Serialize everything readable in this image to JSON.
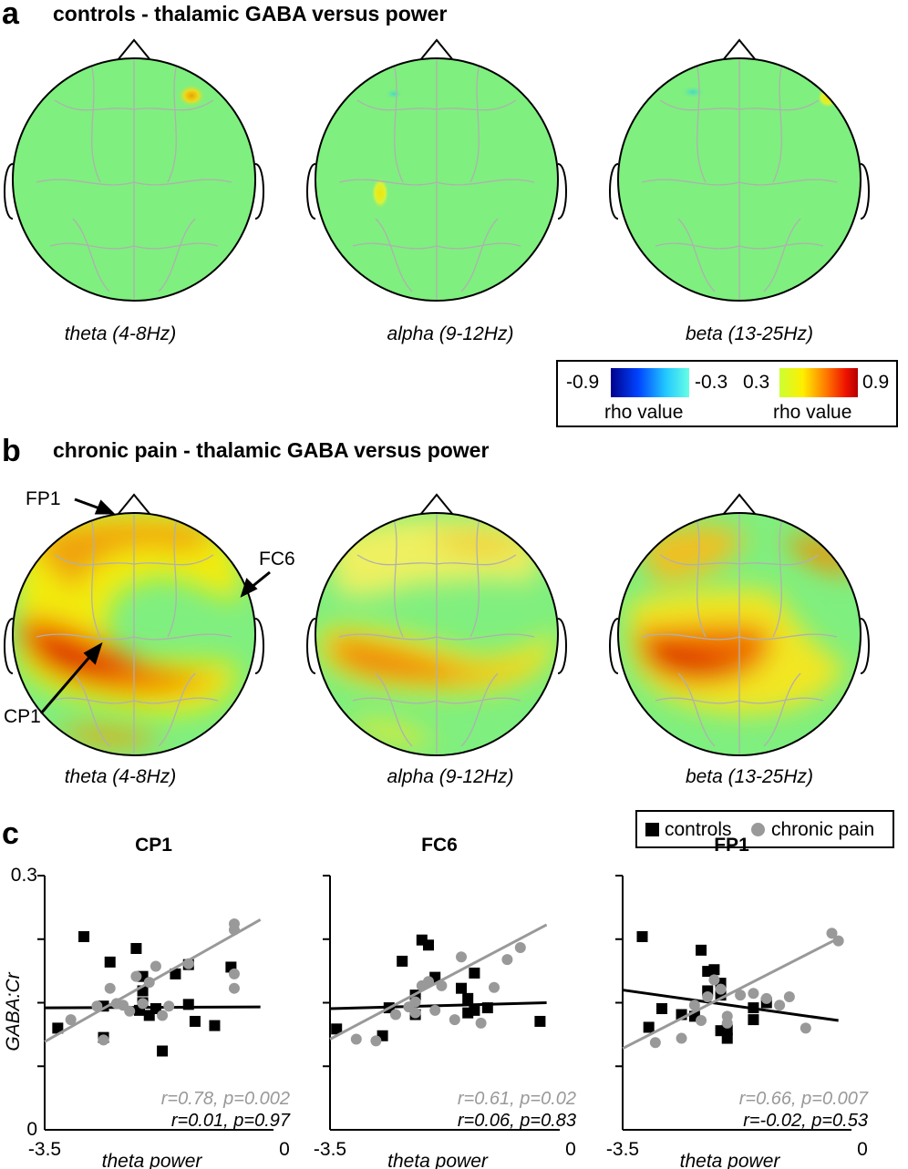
{
  "panel_a": {
    "letter": "a",
    "title": "controls - thalamic GABA versus power",
    "bands": [
      "theta (4-8Hz)",
      "alpha (9-12Hz)",
      "beta (13-25Hz)"
    ]
  },
  "colorbar": {
    "neg_min": "-0.9",
    "neg_max": "-0.3",
    "pos_min": "0.3",
    "pos_max": "0.9",
    "neg_label": "rho value",
    "pos_label": "rho value"
  },
  "panel_b": {
    "letter": "b",
    "title": "chronic pain - thalamic GABA versus power",
    "bands": [
      "theta (4-8Hz)",
      "alpha (9-12Hz)",
      "beta (13-25Hz)"
    ],
    "annotations": [
      "FP1",
      "FC6",
      "CP1"
    ]
  },
  "panel_c": {
    "letter": "c",
    "legend": {
      "controls": "controls",
      "chronic_pain": "chronic pain"
    }
  },
  "colors": {
    "controls": "#000000",
    "chronic_pain": "#999999",
    "map_background": "#7fef7f",
    "neg_low": "#00008c",
    "neg_high": "#66ffe5",
    "pos_low": "#ccff33",
    "pos_high": "#b30000"
  },
  "chart_data": [
    {
      "type": "scatter",
      "title": "CP1",
      "xlabel": "theta power",
      "ylabel": "GABA:Cr",
      "xlim": [
        -3.5,
        0
      ],
      "ylim": [
        0,
        0.3
      ],
      "x_ticks": [
        "-3.5",
        "0"
      ],
      "y_ticks": [
        "0",
        "0.3"
      ],
      "series": [
        {
          "name": "controls",
          "marker": "square",
          "points": [
            [
              -3.3,
              0.12
            ],
            [
              -2.9,
              0.228
            ],
            [
              -2.6,
              0.146
            ],
            [
              -2.6,
              0.109
            ],
            [
              -2.5,
              0.198
            ],
            [
              -2.1,
              0.214
            ],
            [
              -2.05,
              0.141
            ],
            [
              -2.0,
              0.164
            ],
            [
              -2.0,
              0.15
            ],
            [
              -2.0,
              0.181
            ],
            [
              -1.9,
              0.135
            ],
            [
              -1.8,
              0.143
            ],
            [
              -1.7,
              0.093
            ],
            [
              -1.5,
              0.184
            ],
            [
              -1.3,
              0.195
            ],
            [
              -1.3,
              0.148
            ],
            [
              -1.2,
              0.128
            ],
            [
              -0.9,
              0.123
            ],
            [
              -0.65,
              0.192
            ]
          ],
          "trend": [
            [
              -3.5,
              0.144
            ],
            [
              -0.2,
              0.145
            ]
          ],
          "annotation": "r=0.01, p=0.97"
        },
        {
          "name": "chronic pain",
          "marker": "circle",
          "points": [
            [
              -3.1,
              0.13
            ],
            [
              -2.7,
              0.146
            ],
            [
              -2.6,
              0.106
            ],
            [
              -2.5,
              0.167
            ],
            [
              -2.4,
              0.149
            ],
            [
              -2.3,
              0.147
            ],
            [
              -2.2,
              0.14
            ],
            [
              -2.1,
              0.181
            ],
            [
              -2.0,
              0.149
            ],
            [
              -1.9,
              0.174
            ],
            [
              -1.8,
              0.193
            ],
            [
              -1.7,
              0.135
            ],
            [
              -1.6,
              0.146
            ],
            [
              -1.3,
              0.196
            ],
            [
              -0.6,
              0.236
            ],
            [
              -0.6,
              0.167
            ],
            [
              -0.6,
              0.184
            ],
            [
              -0.6,
              0.243
            ]
          ],
          "trend": [
            [
              -3.5,
              0.104
            ],
            [
              -0.2,
              0.248
            ]
          ],
          "annotation": "r=0.78, p=0.002"
        }
      ]
    },
    {
      "type": "scatter",
      "title": "FC6",
      "xlabel": "theta power",
      "ylabel": "",
      "xlim": [
        -3.5,
        0
      ],
      "ylim": [
        0,
        0.3
      ],
      "x_ticks": [
        "-3.5",
        "0"
      ],
      "y_ticks": [],
      "series": [
        {
          "name": "controls",
          "marker": "square",
          "points": [
            [
              -3.4,
              0.119
            ],
            [
              -2.7,
              0.111
            ],
            [
              -2.6,
              0.144
            ],
            [
              -2.4,
              0.199
            ],
            [
              -2.2,
              0.136
            ],
            [
              -2.2,
              0.159
            ],
            [
              -2.1,
              0.224
            ],
            [
              -2.0,
              0.218
            ],
            [
              -1.9,
              0.18
            ],
            [
              -1.5,
              0.167
            ],
            [
              -1.4,
              0.138
            ],
            [
              -1.4,
              0.155
            ],
            [
              -1.3,
              0.185
            ],
            [
              -1.3,
              0.141
            ],
            [
              -1.1,
              0.144
            ],
            [
              -0.3,
              0.128
            ]
          ],
          "trend": [
            [
              -3.5,
              0.143
            ],
            [
              -0.2,
              0.15
            ]
          ],
          "annotation": "r=0.06, p=0.83"
        },
        {
          "name": "chronic pain",
          "marker": "circle",
          "points": [
            [
              -3.1,
              0.107
            ],
            [
              -2.8,
              0.105
            ],
            [
              -2.5,
              0.136
            ],
            [
              -2.3,
              0.145
            ],
            [
              -2.2,
              0.151
            ],
            [
              -2.2,
              0.138
            ],
            [
              -2.1,
              0.17
            ],
            [
              -2.0,
              0.175
            ],
            [
              -1.8,
              0.17
            ],
            [
              -1.9,
              0.141
            ],
            [
              -1.6,
              0.13
            ],
            [
              -1.5,
              0.204
            ],
            [
              -1.2,
              0.126
            ],
            [
              -1.0,
              0.168
            ],
            [
              -0.8,
              0.201
            ],
            [
              -0.6,
              0.215
            ]
          ],
          "trend": [
            [
              -3.5,
              0.107
            ],
            [
              -0.2,
              0.242
            ]
          ],
          "annotation": "r=0.61, p=0.02"
        }
      ]
    },
    {
      "type": "scatter",
      "title": "FP1",
      "xlabel": "theta power",
      "ylabel": "",
      "xlim": [
        -3.5,
        0
      ],
      "ylim": [
        0,
        0.3
      ],
      "x_ticks": [
        "-3.5",
        "0"
      ],
      "y_ticks": [],
      "series": [
        {
          "name": "controls",
          "marker": "square",
          "points": [
            [
              -3.2,
              0.228
            ],
            [
              -3.1,
              0.121
            ],
            [
              -2.9,
              0.143
            ],
            [
              -2.6,
              0.136
            ],
            [
              -2.4,
              0.134
            ],
            [
              -2.3,
              0.212
            ],
            [
              -2.2,
              0.164
            ],
            [
              -2.2,
              0.187
            ],
            [
              -2.1,
              0.189
            ],
            [
              -2.0,
              0.159
            ],
            [
              -2.0,
              0.173
            ],
            [
              -2.0,
              0.117
            ],
            [
              -1.9,
              0.108
            ],
            [
              -1.9,
              0.118
            ],
            [
              -1.5,
              0.13
            ],
            [
              -1.5,
              0.144
            ],
            [
              -1.3,
              0.15
            ]
          ],
          "trend": [
            [
              -3.5,
              0.165
            ],
            [
              -0.2,
              0.129
            ]
          ],
          "annotation": "r=-0.02, p=0.53"
        },
        {
          "name": "chronic pain",
          "marker": "circle",
          "points": [
            [
              -3.0,
              0.103
            ],
            [
              -2.6,
              0.108
            ],
            [
              -2.4,
              0.147
            ],
            [
              -2.3,
              0.129
            ],
            [
              -2.2,
              0.157
            ],
            [
              -2.1,
              0.177
            ],
            [
              -2.0,
              0.166
            ],
            [
              -1.9,
              0.134
            ],
            [
              -1.9,
              0.126
            ],
            [
              -1.7,
              0.159
            ],
            [
              -1.5,
              0.161
            ],
            [
              -1.3,
              0.155
            ],
            [
              -1.1,
              0.147
            ],
            [
              -0.95,
              0.157
            ],
            [
              -0.7,
              0.12
            ],
            [
              -0.3,
              0.232
            ],
            [
              -0.2,
              0.223
            ]
          ],
          "trend": [
            [
              -3.5,
              0.096
            ],
            [
              -0.2,
              0.226
            ]
          ],
          "annotation": "r=0.66, p=0.007"
        }
      ]
    }
  ]
}
